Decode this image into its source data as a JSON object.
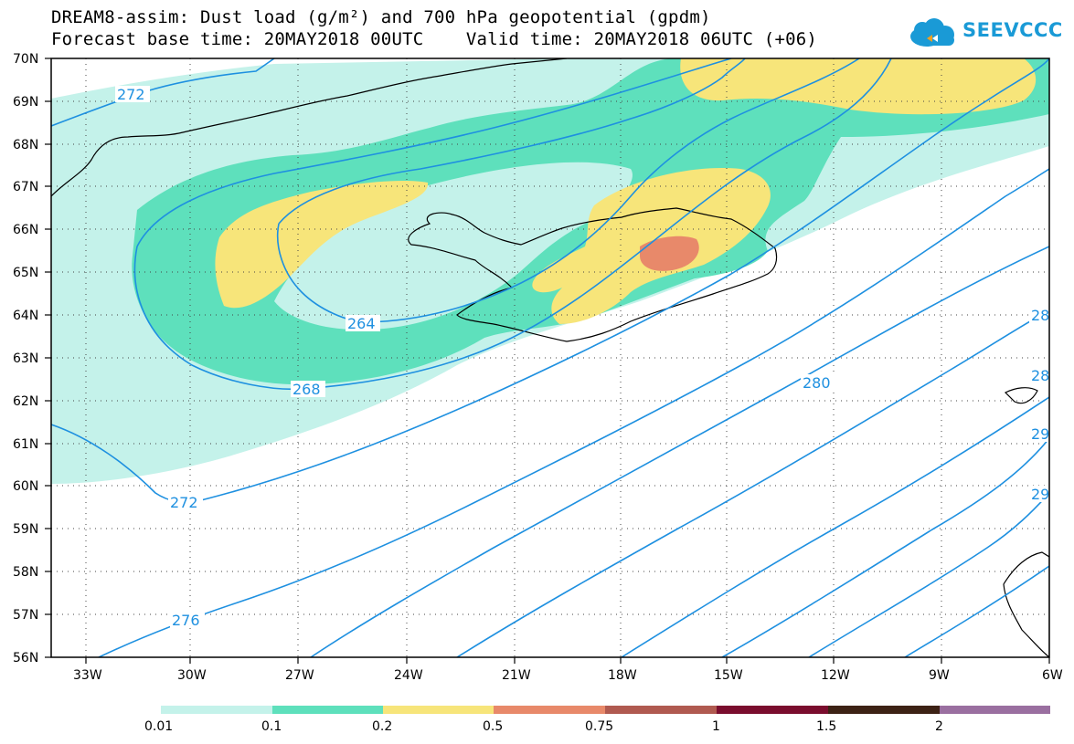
{
  "title": {
    "line1": "DREAM8-assim: Dust load (g/m²) and 700 hPa geopotential (gpdm)",
    "line2": "Forecast base time: 20MAY2018 00UTC    Valid time: 20MAY2018 06UTC (+06)"
  },
  "logo": {
    "text": "SEEVCCC"
  },
  "map": {
    "lat_labels": [
      "70N",
      "69N",
      "68N",
      "67N",
      "66N",
      "65N",
      "64N",
      "63N",
      "62N",
      "61N",
      "60N",
      "59N",
      "58N",
      "57N",
      "56N"
    ],
    "lon_labels": [
      "33W",
      "30W",
      "27W",
      "24W",
      "21W",
      "18W",
      "15W",
      "12W",
      "9W",
      "6W"
    ],
    "contour_labels": [
      "272",
      "264",
      "268",
      "272",
      "276",
      "280",
      "28",
      "28",
      "29",
      "29"
    ]
  },
  "colorbar": {
    "labels": [
      "0.01",
      "0.1",
      "0.2",
      "0.5",
      "0.75",
      "1",
      "1.5",
      "2"
    ],
    "colors": [
      "#c4f2ea",
      "#5ee0bc",
      "#f7e57a",
      "#e8896a",
      "#b05a50",
      "#7a0d2e",
      "#3d2215",
      "#9a6fa0"
    ]
  },
  "colors": {
    "dust_0_01": "#c4f2ea",
    "dust_0_1": "#5ee0bc",
    "dust_0_2": "#f7e57a",
    "dust_0_5": "#e8896a",
    "contour": "#1e90e0",
    "coast": "#000000"
  }
}
